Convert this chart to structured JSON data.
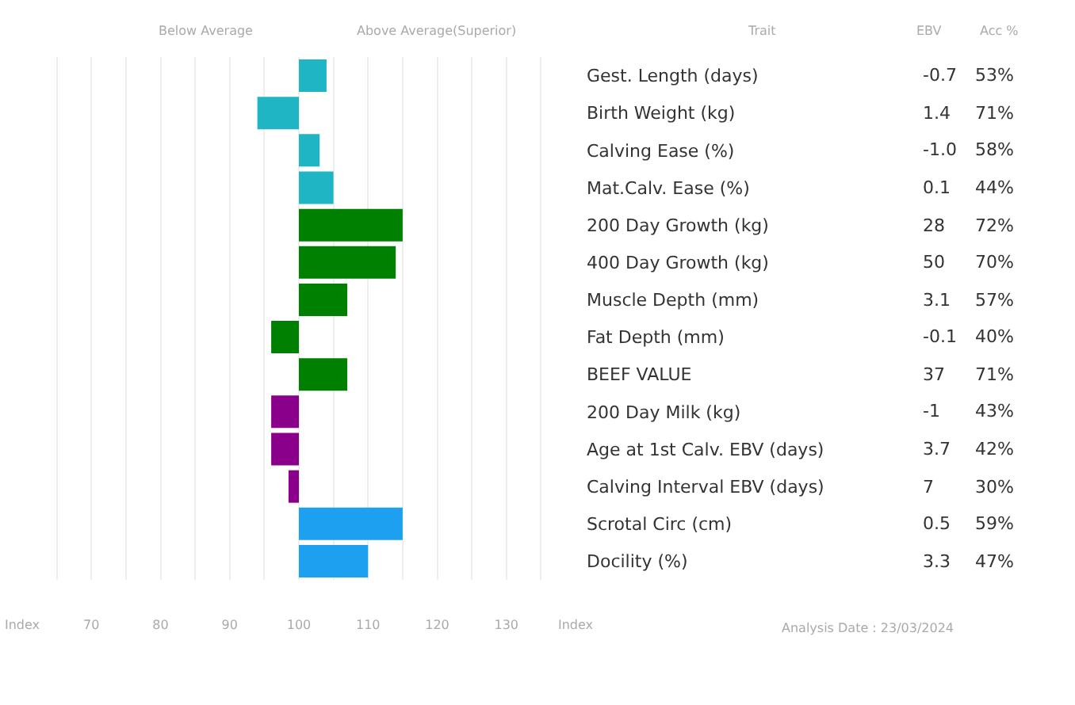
{
  "chart_data": {
    "type": "bar",
    "orientation": "horizontal",
    "categories": [
      "Gest. Length (days)",
      "Birth Weight (kg)",
      "Calving Ease (%)",
      "Mat.Calv. Ease (%)",
      "200 Day Growth (kg)",
      "400 Day Growth (kg)",
      "Muscle Depth (mm)",
      "Fat Depth (mm)",
      "BEEF VALUE",
      "200 Day Milk (kg)",
      "Age at 1st Calv. EBV (days)",
      "Calving Interval EBV (days)",
      "Scrotal Circ (cm)",
      "Docility (%)"
    ],
    "values": [
      4,
      -6,
      3,
      5,
      15,
      14,
      7,
      -4,
      7,
      -4,
      -4,
      -1.5,
      15,
      10
    ],
    "base": [
      100,
      100,
      100,
      100,
      100,
      100,
      100,
      100,
      100,
      100,
      100,
      100,
      100,
      100
    ],
    "colors": [
      "#1fb5c4",
      "#1fb5c4",
      "#1fb5c4",
      "#1fb5c4",
      "#008000",
      "#008000",
      "#008000",
      "#008000",
      "#008000",
      "#8b008b",
      "#8b008b",
      "#8b008b",
      "#1ea0f0",
      "#1ea0f0"
    ],
    "xlim": [
      60,
      140
    ],
    "xticks": [
      {
        "value": 60,
        "label": "Index"
      },
      {
        "value": 65,
        "label": null
      },
      70,
      {
        "value": 75,
        "label": null
      },
      80,
      {
        "value": 85,
        "label": null
      },
      90,
      {
        "value": 95,
        "label": null
      },
      100,
      {
        "value": 105,
        "label": null
      },
      110,
      {
        "value": 115,
        "label": null
      },
      120,
      {
        "value": 125,
        "label": null
      },
      130,
      {
        "value": 135,
        "label": null
      },
      {
        "value": 140,
        "label": "Index"
      }
    ],
    "grid": "x",
    "annotations": [
      "Below Average",
      "Above Average(Superior)",
      "Trait",
      "EBV",
      "Acc %",
      "Analysis Date : 23/03/2024",
      "-0.7",
      "53%",
      "1.4",
      "71%",
      "-1.0",
      "58%",
      "0.1",
      "44%",
      "28",
      "72%",
      "50",
      "70%",
      "3.1",
      "57%",
      "-0.1",
      "40%",
      "37",
      "71%",
      "-1",
      "43%",
      "3.7",
      "42%",
      "7",
      "30%",
      "0.5",
      "59%",
      "3.3",
      "47%"
    ]
  }
}
